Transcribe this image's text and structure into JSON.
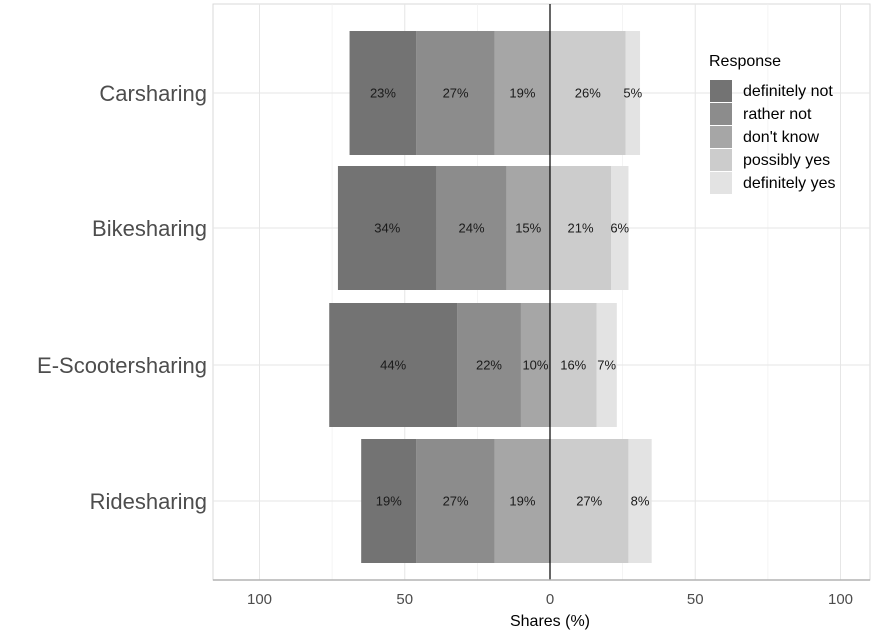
{
  "chart_data": {
    "type": "bar",
    "orientation": "horizontal",
    "stacking": "diverging",
    "title": "",
    "xlabel": "Shares (%)",
    "ylabel": "",
    "xlim": [
      -100,
      100
    ],
    "x_ticks": [
      -100,
      -50,
      0,
      50,
      100
    ],
    "x_tick_labels": [
      "100",
      "50",
      "0",
      "50",
      "100"
    ],
    "grid": true,
    "legend_title": "Response",
    "legend_position": "top-right",
    "categories": [
      "Carsharing",
      "Bikesharing",
      "E-Scootersharing",
      "Ridesharing"
    ],
    "series": [
      {
        "name": "definitely not",
        "color": "#737373",
        "values": [
          23,
          34,
          44,
          19
        ],
        "labels": [
          "23%",
          "34%",
          "44%",
          "19%"
        ]
      },
      {
        "name": "rather not",
        "color": "#8c8c8c",
        "values": [
          27,
          24,
          22,
          27
        ],
        "labels": [
          "27%",
          "24%",
          "22%",
          "27%"
        ]
      },
      {
        "name": "don't know",
        "color": "#a6a6a6",
        "values": [
          19,
          15,
          10,
          19
        ],
        "labels": [
          "19%",
          "15%",
          "10%",
          "19%"
        ]
      },
      {
        "name": "possibly yes",
        "color": "#cccccc",
        "values": [
          26,
          21,
          16,
          27
        ],
        "labels": [
          "26%",
          "21%",
          "16%",
          "27%"
        ]
      },
      {
        "name": "definitely yes",
        "color": "#e3e3e3",
        "values": [
          5,
          6,
          7,
          8
        ],
        "labels": [
          "5%",
          "6%",
          "7%",
          "8%"
        ]
      }
    ]
  }
}
